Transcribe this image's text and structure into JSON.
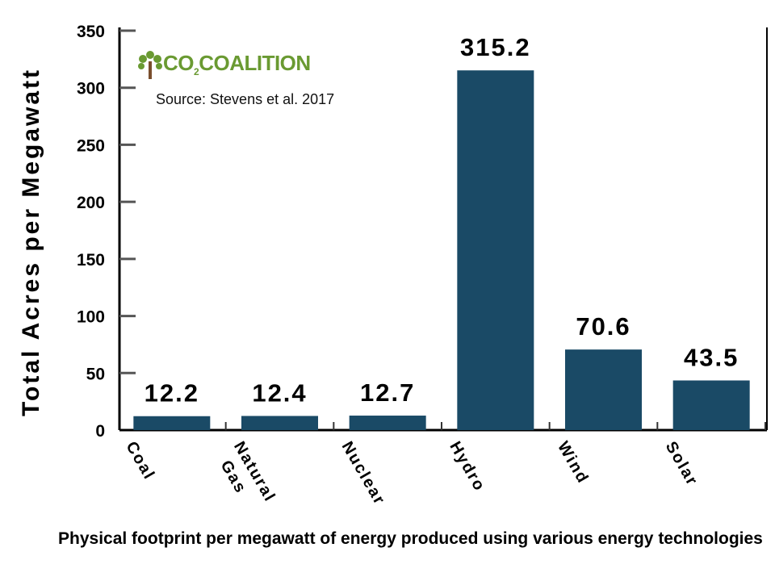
{
  "chart_data": {
    "type": "bar",
    "title": "Physical footprint per megawatt of energy produced using various energy technologies",
    "xlabel": "",
    "ylabel": "Total Acres per Megawatt",
    "ylim": [
      0,
      350
    ],
    "yticks": [
      0,
      50,
      100,
      150,
      200,
      250,
      300,
      350
    ],
    "categories": [
      "Coal",
      "Natural Gas",
      "Nuclear",
      "Hydro",
      "Wind",
      "Solar"
    ],
    "values": [
      12.2,
      12.4,
      12.7,
      315.2,
      70.6,
      43.5
    ],
    "value_labels": [
      "12.2",
      "12.4",
      "12.7",
      "315.2",
      "70.6",
      "43.5"
    ],
    "bar_color": "#1a4a66",
    "grid": false
  },
  "logo": {
    "text_main": "CO",
    "text_sub": "2",
    "text_rest": "COALITION",
    "color": "#6a9a32"
  },
  "source": "Source: Stevens et al. 2017"
}
